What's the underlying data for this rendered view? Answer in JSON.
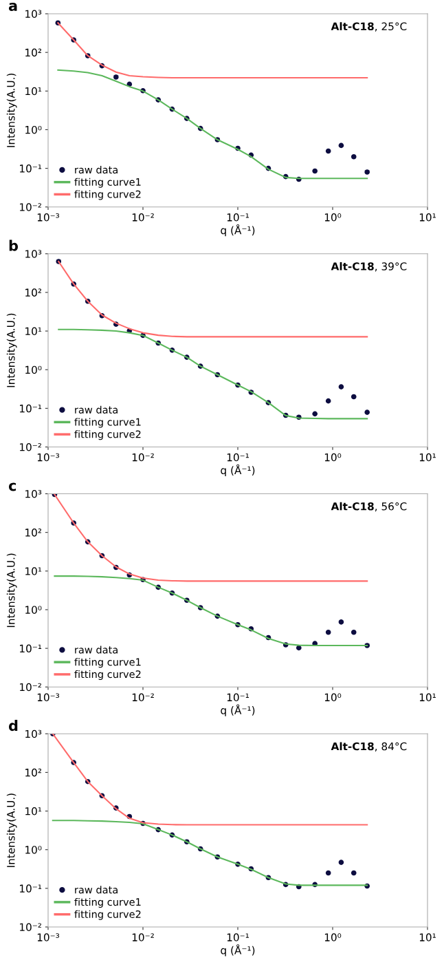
{
  "chart_data": [
    {
      "type": "line",
      "title": "a",
      "annotations": [
        "Alt-C18",
        ", 25°C"
      ],
      "xlabel": "q (Å⁻¹)",
      "ylabel": "Intensity(A.U.)",
      "log": "xy",
      "legend": "bottom left",
      "grid": false,
      "xlim": [
        0.001,
        10
      ],
      "ylim": [
        0.01,
        1000
      ],
      "xticks": [
        {
          "value": 0.001,
          "label": "10⁻³"
        },
        {
          "value": 0.01,
          "label": "10⁻²"
        },
        {
          "value": 0.1,
          "label": "10⁻¹"
        },
        {
          "value": 1,
          "label": "10⁰"
        },
        {
          "value": 10,
          "label": "10¹"
        }
      ],
      "yticks": [
        {
          "value": 0.01,
          "label": "10⁻²"
        },
        {
          "value": 0.1,
          "label": "10⁻¹"
        },
        {
          "value": 1,
          "label": "10⁰"
        },
        {
          "value": 10,
          "label": "10¹"
        },
        {
          "value": 100,
          "label": "10²"
        },
        {
          "value": 1000,
          "label": "10³"
        }
      ],
      "x": [
        0.00127,
        0.00186,
        0.00262,
        0.0037,
        0.0052,
        0.0072,
        0.01,
        0.0145,
        0.0203,
        0.029,
        0.0404,
        0.061,
        0.1,
        0.138,
        0.21,
        0.32,
        0.44,
        0.65,
        0.9,
        1.23,
        1.67,
        2.31
      ],
      "series": [
        {
          "name": "raw data",
          "type": "scatter",
          "marker": "circle",
          "color": "#0d0d40",
          "values": [
            580,
            210,
            82,
            45,
            23,
            15,
            10.2,
            5.9,
            3.4,
            1.95,
            1.08,
            0.55,
            0.33,
            0.22,
            0.1,
            0.061,
            0.052,
            0.085,
            0.28,
            0.39,
            0.2,
            0.08
          ]
        },
        {
          "name": "fitting curve1",
          "color": "#5cb85c",
          "values": [
            35,
            33,
            30,
            25,
            18,
            13,
            10,
            5.9,
            3.4,
            1.95,
            1.08,
            0.55,
            0.31,
            0.2,
            0.095,
            0.058,
            0.055,
            0.055,
            0.055,
            0.055,
            0.055,
            0.055
          ]
        },
        {
          "name": "fitting curve2",
          "color": "#ff6b6b",
          "values": [
            580,
            210,
            82,
            47,
            31,
            25,
            23.5,
            22.5,
            22,
            22,
            22,
            22,
            22,
            22,
            22,
            22,
            22,
            22,
            22,
            22,
            22,
            22
          ]
        }
      ]
    },
    {
      "type": "line",
      "title": "b",
      "annotations": [
        "Alt-C18",
        ", 39°C"
      ],
      "xlabel": "q (Å⁻¹)",
      "ylabel": "Intensity(A.U.)",
      "log": "xy",
      "legend": "bottom left",
      "grid": false,
      "xlim": [
        0.001,
        10
      ],
      "ylim": [
        0.01,
        1000
      ],
      "xticks": [
        {
          "value": 0.001,
          "label": "10⁻³"
        },
        {
          "value": 0.01,
          "label": "10⁻²"
        },
        {
          "value": 0.1,
          "label": "10⁻¹"
        },
        {
          "value": 1,
          "label": "10⁰"
        },
        {
          "value": 10,
          "label": "10¹"
        }
      ],
      "yticks": [
        {
          "value": 0.01,
          "label": "10⁻²"
        },
        {
          "value": 0.1,
          "label": "10⁻¹"
        },
        {
          "value": 1,
          "label": "10⁰"
        },
        {
          "value": 10,
          "label": "10¹"
        },
        {
          "value": 100,
          "label": "10²"
        },
        {
          "value": 1000,
          "label": "10³"
        }
      ],
      "x": [
        0.00129,
        0.00186,
        0.00262,
        0.0037,
        0.0052,
        0.0072,
        0.01,
        0.0145,
        0.0203,
        0.029,
        0.0404,
        0.061,
        0.1,
        0.138,
        0.21,
        0.32,
        0.44,
        0.65,
        0.9,
        1.23,
        1.67,
        2.31
      ],
      "series": [
        {
          "name": "raw data",
          "type": "scatter",
          "marker": "circle",
          "color": "#0d0d40",
          "values": [
            630,
            165,
            59,
            25,
            15,
            10.2,
            7.7,
            4.9,
            3.2,
            2.1,
            1.23,
            0.74,
            0.4,
            0.26,
            0.14,
            0.066,
            0.059,
            0.072,
            0.155,
            0.36,
            0.2,
            0.079
          ]
        },
        {
          "name": "fitting curve1",
          "color": "#5cb85c",
          "values": [
            11,
            11,
            10.8,
            10.5,
            10,
            9,
            7.7,
            4.9,
            3.2,
            2.1,
            1.23,
            0.74,
            0.4,
            0.27,
            0.14,
            0.065,
            0.056,
            0.055,
            0.054,
            0.054,
            0.054,
            0.054
          ]
        },
        {
          "name": "fitting curve2",
          "color": "#ff6b6b",
          "values": [
            630,
            165,
            59,
            26,
            16,
            11.5,
            9,
            7.8,
            7.3,
            7.1,
            7.1,
            7.1,
            7.1,
            7.1,
            7.1,
            7.1,
            7.1,
            7.1,
            7.1,
            7.1,
            7.1,
            7.1
          ]
        }
      ]
    },
    {
      "type": "line",
      "title": "c",
      "annotations": [
        "Alt-C18",
        ", 56°C"
      ],
      "xlabel": "q (Å⁻¹)",
      "ylabel": "Intensity(A.U.)",
      "log": "xy",
      "legend": "bottom left",
      "grid": false,
      "xlim": [
        0.001,
        10
      ],
      "ylim": [
        0.01,
        1000
      ],
      "xticks": [
        {
          "value": 0.001,
          "label": "10⁻³"
        },
        {
          "value": 0.01,
          "label": "10⁻²"
        },
        {
          "value": 0.1,
          "label": "10⁻¹"
        },
        {
          "value": 1,
          "label": "10⁰"
        },
        {
          "value": 10,
          "label": "10¹"
        }
      ],
      "yticks": [
        {
          "value": 0.01,
          "label": "10⁻²"
        },
        {
          "value": 0.1,
          "label": "10⁻¹"
        },
        {
          "value": 1,
          "label": "10⁰"
        },
        {
          "value": 10,
          "label": "10¹"
        },
        {
          "value": 100,
          "label": "10²"
        },
        {
          "value": 1000,
          "label": "10³"
        }
      ],
      "x": [
        0.00117,
        0.00186,
        0.00262,
        0.0037,
        0.0052,
        0.0072,
        0.01,
        0.0145,
        0.0203,
        0.029,
        0.0404,
        0.061,
        0.1,
        0.138,
        0.21,
        0.32,
        0.44,
        0.65,
        0.9,
        1.23,
        1.67,
        2.31
      ],
      "series": [
        {
          "name": "raw data",
          "type": "scatter",
          "marker": "circle",
          "color": "#0d0d40",
          "values": [
            960,
            175,
            57,
            25,
            12.4,
            7.9,
            6,
            3.8,
            2.7,
            1.75,
            1.13,
            0.68,
            0.41,
            0.32,
            0.19,
            0.123,
            0.103,
            0.133,
            0.26,
            0.48,
            0.26,
            0.118
          ]
        },
        {
          "name": "fitting curve1",
          "color": "#5cb85c",
          "values": [
            7.4,
            7.4,
            7.3,
            7.1,
            6.8,
            6.4,
            5.8,
            3.8,
            2.7,
            1.75,
            1.13,
            0.68,
            0.41,
            0.3,
            0.18,
            0.13,
            0.12,
            0.118,
            0.118,
            0.118,
            0.118,
            0.118
          ]
        },
        {
          "name": "fitting curve2",
          "color": "#ff6b6b",
          "values": [
            960,
            175,
            57,
            25,
            12.8,
            8.4,
            6.6,
            5.8,
            5.6,
            5.5,
            5.5,
            5.5,
            5.5,
            5.5,
            5.5,
            5.5,
            5.5,
            5.5,
            5.5,
            5.5,
            5.5,
            5.5
          ]
        }
      ]
    },
    {
      "type": "line",
      "title": "d",
      "annotations": [
        "Alt-C18",
        ", 84°C"
      ],
      "xlabel": "q (Å⁻¹)",
      "ylabel": "Intensity(A.U.)",
      "log": "xy",
      "legend": "bottom left",
      "grid": false,
      "xlim": [
        0.001,
        10
      ],
      "ylim": [
        0.01,
        1000
      ],
      "xticks": [
        {
          "value": 0.001,
          "label": "10⁻³"
        },
        {
          "value": 0.01,
          "label": "10⁻²"
        },
        {
          "value": 0.1,
          "label": "10⁻¹"
        },
        {
          "value": 1,
          "label": "10⁰"
        },
        {
          "value": 10,
          "label": "10¹"
        }
      ],
      "yticks": [
        {
          "value": 0.01,
          "label": "10⁻²"
        },
        {
          "value": 0.1,
          "label": "10⁻¹"
        },
        {
          "value": 1,
          "label": "10⁰"
        },
        {
          "value": 10,
          "label": "10¹"
        },
        {
          "value": 100,
          "label": "10²"
        },
        {
          "value": 1000,
          "label": "10³"
        }
      ],
      "x": [
        0.00112,
        0.00186,
        0.00262,
        0.0037,
        0.0052,
        0.0072,
        0.01,
        0.0145,
        0.0203,
        0.029,
        0.0404,
        0.061,
        0.1,
        0.138,
        0.21,
        0.32,
        0.44,
        0.65,
        0.9,
        1.23,
        1.67,
        2.31
      ],
      "series": [
        {
          "name": "raw data",
          "type": "scatter",
          "marker": "circle",
          "color": "#0d0d40",
          "values": [
            1000,
            180,
            58,
            25,
            12,
            7.2,
            4.8,
            3.3,
            2.4,
            1.6,
            1.05,
            0.65,
            0.42,
            0.32,
            0.19,
            0.125,
            0.11,
            0.125,
            0.25,
            0.47,
            0.25,
            0.115
          ]
        },
        {
          "name": "fitting curve1",
          "color": "#5cb85c",
          "values": [
            5.7,
            5.7,
            5.6,
            5.5,
            5.3,
            5.1,
            4.7,
            3.3,
            2.4,
            1.6,
            1.05,
            0.65,
            0.42,
            0.31,
            0.19,
            0.13,
            0.12,
            0.12,
            0.12,
            0.12,
            0.12,
            0.12
          ]
        },
        {
          "name": "fitting curve2",
          "color": "#ff6b6b",
          "values": [
            1000,
            180,
            58,
            25,
            11.5,
            6.5,
            5.0,
            4.6,
            4.45,
            4.4,
            4.4,
            4.4,
            4.4,
            4.4,
            4.4,
            4.4,
            4.4,
            4.4,
            4.4,
            4.4,
            4.4,
            4.4
          ]
        }
      ]
    }
  ]
}
